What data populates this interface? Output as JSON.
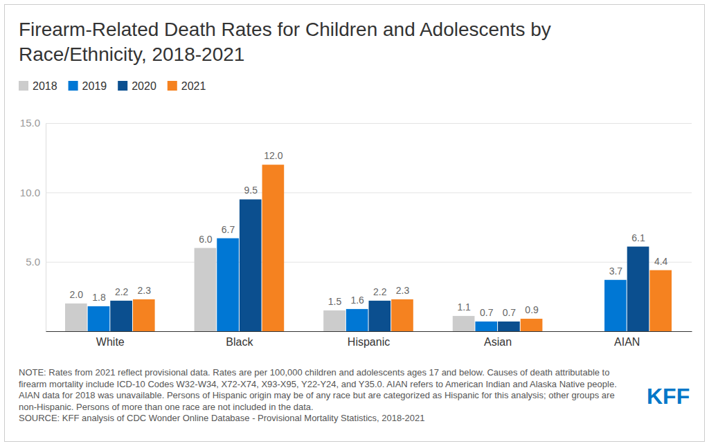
{
  "chart_data": {
    "type": "bar",
    "title": "Firearm-Related Death Rates for Children and Adolescents by Race/Ethnicity, 2018-2021",
    "categories": [
      "White",
      "Black",
      "Hispanic",
      "Asian",
      "AIAN"
    ],
    "series": [
      {
        "name": "2018",
        "color": "#cccccc",
        "values": [
          2.0,
          6.0,
          1.5,
          1.1,
          null
        ],
        "value_labels": [
          "2.0",
          "6.0",
          "1.5",
          "1.1",
          null
        ]
      },
      {
        "name": "2019",
        "color": "#0077d4",
        "values": [
          1.8,
          6.7,
          1.6,
          0.7,
          3.7
        ],
        "value_labels": [
          "1.8",
          "6.7",
          "1.6",
          "0.7",
          "3.7"
        ]
      },
      {
        "name": "2020",
        "color": "#0b4f8f",
        "values": [
          2.2,
          9.5,
          2.2,
          0.7,
          6.1
        ],
        "value_labels": [
          "2.2",
          "9.5",
          "2.2",
          "0.7",
          "6.1"
        ]
      },
      {
        "name": "2021",
        "color": "#f58220",
        "values": [
          2.3,
          12.0,
          2.3,
          0.9,
          4.4
        ],
        "value_labels": [
          "2.3",
          "12.0",
          "2.3",
          "0.9",
          "4.4"
        ]
      }
    ],
    "ylim": [
      0,
      15
    ],
    "yticks": [
      {
        "value": 5,
        "label": "5.0"
      },
      {
        "value": 10,
        "label": "10.0"
      },
      {
        "value": 15,
        "label": "15.0"
      }
    ],
    "grid": true,
    "legend": "top-left",
    "data_labels": true,
    "note": "NOTE: Rates from 2021 reflect provisional data. Rates are per 100,000 children and adolescents ages 17 and below. Causes of death attributable to firearm mortality include ICD-10 Codes W32-W34, X72-X74, X93-X95, Y22-Y24, and Y35.0. AIAN refers to American Indian and Alaska Native people. AIAN data for 2018 was unavailable. Persons of Hispanic origin may be of any race but are categorized as Hispanic for this analysis; other groups are non-Hispanic. Persons of more than one race are not included in the data.",
    "source": "SOURCE: KFF analysis of CDC Wonder Online Database - Provisional Mortality Statistics, 2018-2021",
    "logo": "KFF"
  }
}
